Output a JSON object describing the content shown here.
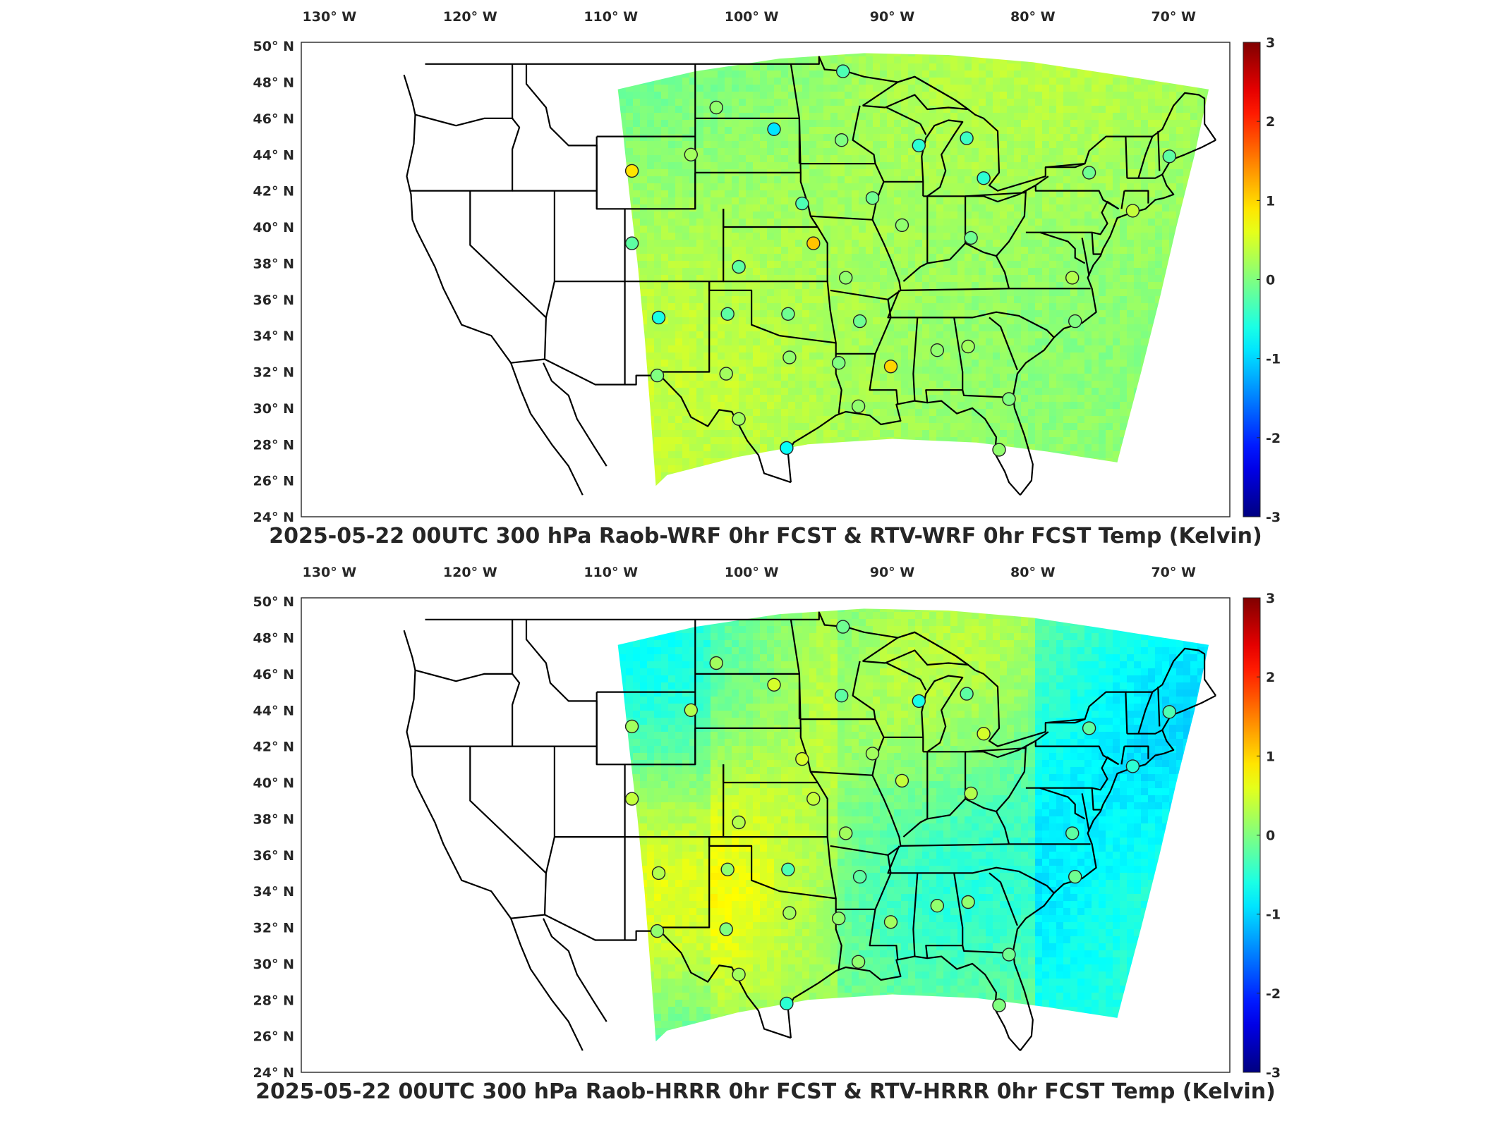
{
  "panels": [
    {
      "id": "wrf",
      "title": "2025-05-22 00UTC 300 hPa Raob-WRF 0hr FCST & RTV-WRF 0hr FCST Temp (Kelvin)",
      "field_bias": 0.15,
      "stations": [
        {
          "lon": -93.5,
          "lat": 48.6,
          "v": -0.3
        },
        {
          "lon": -102.5,
          "lat": 46.6,
          "v": 0.1
        },
        {
          "lon": -98.4,
          "lat": 45.4,
          "v": -0.9
        },
        {
          "lon": -93.6,
          "lat": 44.8,
          "v": 0.0
        },
        {
          "lon": -88.1,
          "lat": 44.5,
          "v": -0.5
        },
        {
          "lon": -84.7,
          "lat": 44.9,
          "v": -0.4
        },
        {
          "lon": -104.3,
          "lat": 44.0,
          "v": 0.2
        },
        {
          "lon": -108.5,
          "lat": 43.1,
          "v": 0.9
        },
        {
          "lon": -83.5,
          "lat": 42.7,
          "v": -0.5
        },
        {
          "lon": -76.0,
          "lat": 43.0,
          "v": -0.1
        },
        {
          "lon": -91.4,
          "lat": 41.6,
          "v": -0.1
        },
        {
          "lon": -96.4,
          "lat": 41.3,
          "v": -0.3
        },
        {
          "lon": -89.3,
          "lat": 40.1,
          "v": 0.1
        },
        {
          "lon": -84.4,
          "lat": 39.4,
          "v": -0.1
        },
        {
          "lon": -72.9,
          "lat": 40.9,
          "v": 0.4
        },
        {
          "lon": -95.6,
          "lat": 39.1,
          "v": 1.1
        },
        {
          "lon": -108.5,
          "lat": 39.1,
          "v": -0.2
        },
        {
          "lon": -100.9,
          "lat": 37.8,
          "v": -0.2
        },
        {
          "lon": -77.2,
          "lat": 37.2,
          "v": 0.3
        },
        {
          "lon": -93.3,
          "lat": 37.2,
          "v": 0.1
        },
        {
          "lon": -106.6,
          "lat": 35.0,
          "v": -0.6
        },
        {
          "lon": -101.7,
          "lat": 35.2,
          "v": -0.2
        },
        {
          "lon": -97.4,
          "lat": 35.2,
          "v": -0.1
        },
        {
          "lon": -92.3,
          "lat": 34.8,
          "v": -0.1
        },
        {
          "lon": -77.0,
          "lat": 34.8,
          "v": 0.0
        },
        {
          "lon": -86.8,
          "lat": 33.2,
          "v": 0.1
        },
        {
          "lon": -84.6,
          "lat": 33.4,
          "v": 0.2
        },
        {
          "lon": -97.3,
          "lat": 32.8,
          "v": 0.1
        },
        {
          "lon": -93.8,
          "lat": 32.5,
          "v": 0.0
        },
        {
          "lon": -90.1,
          "lat": 32.3,
          "v": 1.0
        },
        {
          "lon": -101.8,
          "lat": 31.9,
          "v": 0.2
        },
        {
          "lon": -106.7,
          "lat": 31.8,
          "v": 0.0
        },
        {
          "lon": -92.4,
          "lat": 30.1,
          "v": 0.1
        },
        {
          "lon": -81.7,
          "lat": 30.5,
          "v": 0.0
        },
        {
          "lon": -100.9,
          "lat": 29.4,
          "v": 0.2
        },
        {
          "lon": -97.5,
          "lat": 27.8,
          "v": -0.7
        },
        {
          "lon": -82.4,
          "lat": 27.7,
          "v": 0.1
        },
        {
          "lon": -70.3,
          "lat": 43.9,
          "v": -0.2
        }
      ]
    },
    {
      "id": "hrrr",
      "title": "2025-05-22 00UTC 300 hPa Raob-HRRR 0hr FCST & RTV-HRRR 0hr FCST Temp (Kelvin)",
      "field_bias": -0.1,
      "stations": [
        {
          "lon": -93.5,
          "lat": 48.6,
          "v": -0.1
        },
        {
          "lon": -102.5,
          "lat": 46.6,
          "v": 0.2
        },
        {
          "lon": -98.4,
          "lat": 45.4,
          "v": 0.5
        },
        {
          "lon": -93.6,
          "lat": 44.8,
          "v": -0.2
        },
        {
          "lon": -88.1,
          "lat": 44.5,
          "v": -0.6
        },
        {
          "lon": -84.7,
          "lat": 44.9,
          "v": -0.2
        },
        {
          "lon": -104.3,
          "lat": 44.0,
          "v": 0.3
        },
        {
          "lon": -108.5,
          "lat": 43.1,
          "v": 0.2
        },
        {
          "lon": -83.5,
          "lat": 42.7,
          "v": 0.5
        },
        {
          "lon": -76.0,
          "lat": 43.0,
          "v": -0.2
        },
        {
          "lon": -91.4,
          "lat": 41.6,
          "v": 0.2
        },
        {
          "lon": -96.4,
          "lat": 41.3,
          "v": 0.5
        },
        {
          "lon": -89.3,
          "lat": 40.1,
          "v": 0.4
        },
        {
          "lon": -84.4,
          "lat": 39.4,
          "v": 0.3
        },
        {
          "lon": -72.9,
          "lat": 40.9,
          "v": -0.5
        },
        {
          "lon": -95.6,
          "lat": 39.1,
          "v": 0.4
        },
        {
          "lon": -108.5,
          "lat": 39.1,
          "v": 0.4
        },
        {
          "lon": -100.9,
          "lat": 37.8,
          "v": 0.3
        },
        {
          "lon": -77.2,
          "lat": 37.2,
          "v": -0.2
        },
        {
          "lon": -93.3,
          "lat": 37.2,
          "v": 0.2
        },
        {
          "lon": -106.6,
          "lat": 35.0,
          "v": 0.3
        },
        {
          "lon": -101.7,
          "lat": 35.2,
          "v": 0.1
        },
        {
          "lon": -97.4,
          "lat": 35.2,
          "v": -0.3
        },
        {
          "lon": -92.3,
          "lat": 34.8,
          "v": -0.2
        },
        {
          "lon": -77.0,
          "lat": 34.8,
          "v": -0.1
        },
        {
          "lon": -86.8,
          "lat": 33.2,
          "v": 0.1
        },
        {
          "lon": -84.6,
          "lat": 33.4,
          "v": 0.1
        },
        {
          "lon": -97.3,
          "lat": 32.8,
          "v": 0.2
        },
        {
          "lon": -93.8,
          "lat": 32.5,
          "v": 0.1
        },
        {
          "lon": -90.1,
          "lat": 32.3,
          "v": 0.2
        },
        {
          "lon": -101.8,
          "lat": 31.9,
          "v": 0.0
        },
        {
          "lon": -106.7,
          "lat": 31.8,
          "v": 0.1
        },
        {
          "lon": -92.4,
          "lat": 30.1,
          "v": 0.1
        },
        {
          "lon": -81.7,
          "lat": 30.5,
          "v": -0.1
        },
        {
          "lon": -100.9,
          "lat": 29.4,
          "v": 0.2
        },
        {
          "lon": -97.5,
          "lat": 27.8,
          "v": -0.5
        },
        {
          "lon": -82.4,
          "lat": 27.7,
          "v": 0.0
        },
        {
          "lon": -70.3,
          "lat": 43.9,
          "v": -0.3
        }
      ]
    }
  ],
  "x_tick_labels": [
    "130° W",
    "120° W",
    "110° W",
    "100° W",
    "90° W",
    "80° W",
    "70° W"
  ],
  "y_tick_labels": [
    "50° N",
    "48° N",
    "46° N",
    "44° N",
    "42° N",
    "40° N",
    "38° N",
    "36° N",
    "34° N",
    "32° N",
    "30° N",
    "28° N",
    "26° N",
    "24° N"
  ],
  "colorbar": {
    "range": [
      -3,
      3
    ],
    "tick_labels": [
      "3",
      "2",
      "1",
      "0",
      "-1",
      "-2",
      "-3"
    ],
    "colormap": "jet"
  },
  "colors": {
    "background": "#ffffff",
    "axes": "#262626",
    "border_lines": "#000000",
    "no_data": "#ffffff"
  }
}
